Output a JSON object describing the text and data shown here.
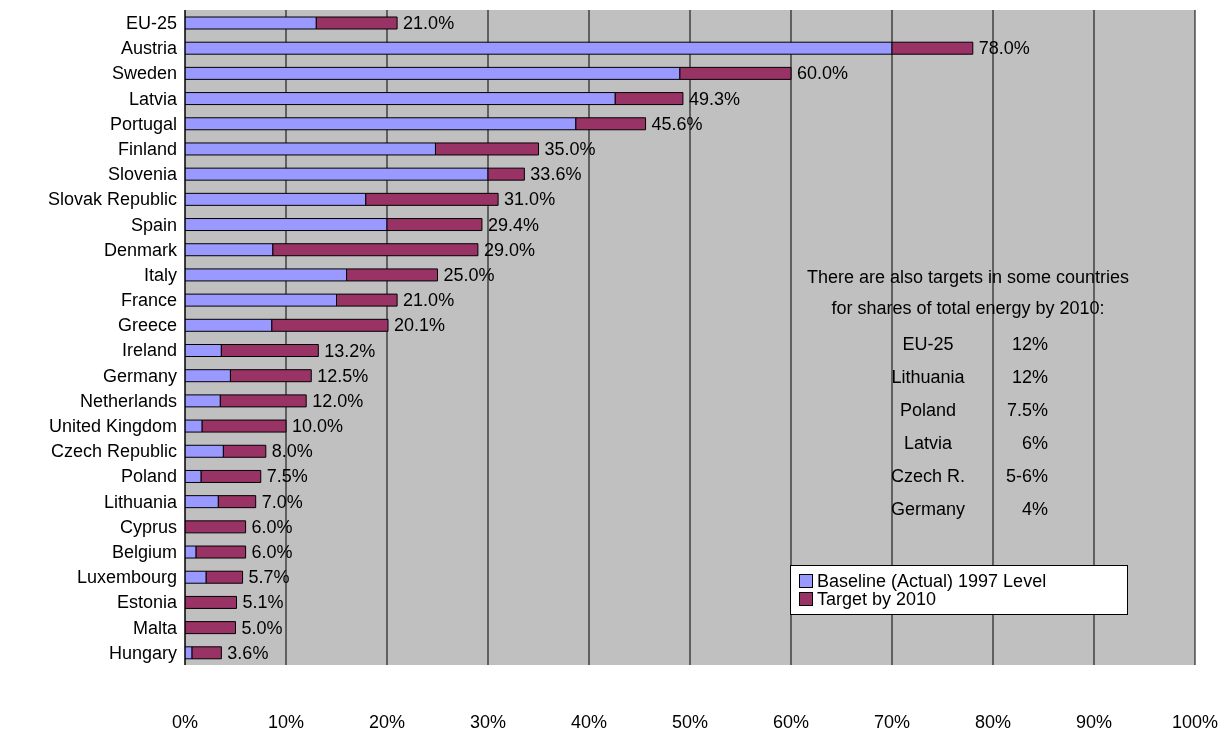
{
  "chart_data": {
    "type": "bar",
    "orientation": "horizontal",
    "stacked": true,
    "categories": [
      "EU-25",
      "Austria",
      "Sweden",
      "Latvia",
      "Portugal",
      "Finland",
      "Slovenia",
      "Slovak Republic",
      "Spain",
      "Denmark",
      "Italy",
      "France",
      "Greece",
      "Ireland",
      "Germany",
      "Netherlands",
      "United Kingdom",
      "Czech Republic",
      "Poland",
      "Lithuania",
      "Cyprus",
      "Belgium",
      "Luxembourg",
      "Estonia",
      "Malta",
      "Hungary"
    ],
    "series": [
      {
        "name": "Baseline (Actual) 1997 Level",
        "color": "#9999ff",
        "values": [
          13,
          70,
          49,
          42.6,
          38.7,
          24.8,
          30,
          17.9,
          20,
          8.7,
          16,
          15,
          8.6,
          3.6,
          4.5,
          3.5,
          1.7,
          3.8,
          1.6,
          3.3,
          0,
          1.1,
          2.1,
          null,
          0,
          0.7
        ]
      },
      {
        "name": "Target by 2010",
        "color": "#993366",
        "values": [
          8,
          8,
          11,
          6.7,
          6.9,
          10.2,
          3.6,
          13.1,
          9.4,
          20.3,
          9,
          6,
          11.5,
          9.6,
          8,
          8.5,
          8.3,
          4.2,
          5.9,
          3.7,
          6,
          4.9,
          3.6,
          5.1,
          5,
          2.9
        ]
      }
    ],
    "totals": [
      "21.0%",
      "78.0%",
      "60.0%",
      "49.3%",
      "45.6%",
      "35.0%",
      "33.6%",
      "31.0%",
      "29.4%",
      "29.0%",
      "25.0%",
      "21.0%",
      "20.1%",
      "13.2%",
      "12.5%",
      "12.0%",
      "10.0%",
      "8.0%",
      "7.5%",
      "7.0%",
      "6.0%",
      "6.0%",
      "5.7%",
      "5.1%",
      "5.0%",
      "3.6%"
    ],
    "xlim": [
      0,
      100
    ],
    "xticks": [
      {
        "value": 0,
        "label": "0%"
      },
      {
        "value": 10,
        "label": "10%"
      },
      {
        "value": 20,
        "label": "20%"
      },
      {
        "value": 30,
        "label": "30%"
      },
      {
        "value": 40,
        "label": "40%"
      },
      {
        "value": 50,
        "label": "50%"
      },
      {
        "value": 60,
        "label": "60%"
      },
      {
        "value": 70,
        "label": "70%"
      },
      {
        "value": 80,
        "label": "80%"
      },
      {
        "value": 90,
        "label": "90%"
      },
      {
        "value": 100,
        "label": "100%"
      }
    ],
    "grid": "x",
    "legend": "bottom right",
    "annotations": [
      "There are also targets in some countries",
      "for shares of total energy by 2010:",
      "EU-25",
      "12%",
      "Lithuania",
      "12%",
      "Poland",
      "7.5%",
      "Latvia",
      "6%",
      "Czech R.",
      "5-6%",
      "Germany",
      "4%"
    ]
  }
}
